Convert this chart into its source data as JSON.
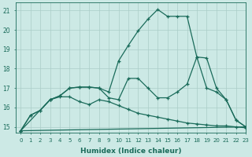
{
  "xlabel": "Humidex (Indice chaleur)",
  "xlim": [
    -0.5,
    23
  ],
  "ylim": [
    14.7,
    21.4
  ],
  "yticks": [
    15,
    16,
    17,
    18,
    19,
    20,
    21
  ],
  "xticks": [
    0,
    1,
    2,
    3,
    4,
    5,
    6,
    7,
    8,
    9,
    10,
    11,
    12,
    13,
    14,
    15,
    16,
    17,
    18,
    19,
    20,
    21,
    22,
    23
  ],
  "background_color": "#cce9e5",
  "grid_color": "#aacdc8",
  "line_color": "#1a6b5a",
  "lines": [
    {
      "x": [
        0,
        1,
        2,
        3,
        4,
        5,
        6,
        7,
        8,
        9,
        10,
        11,
        12,
        13,
        14,
        15,
        16,
        17,
        18,
        19,
        20,
        21,
        22,
        23
      ],
      "y": [
        14.8,
        15.6,
        15.85,
        16.4,
        16.6,
        17.0,
        17.05,
        17.05,
        17.0,
        16.8,
        18.4,
        19.2,
        19.95,
        20.55,
        21.05,
        20.7,
        20.7,
        20.7,
        18.6,
        18.55,
        17.0,
        16.4,
        15.35,
        15.0
      ]
    },
    {
      "x": [
        0,
        1,
        2,
        3,
        4,
        5,
        6,
        7,
        8,
        9,
        10,
        11,
        12,
        13,
        14,
        15,
        16,
        17,
        18,
        19,
        20,
        21,
        22,
        23
      ],
      "y": [
        14.8,
        15.6,
        15.85,
        16.4,
        16.6,
        17.0,
        17.05,
        17.05,
        17.0,
        16.5,
        16.4,
        17.5,
        17.5,
        17.0,
        16.5,
        16.5,
        16.8,
        17.2,
        18.6,
        17.0,
        16.8,
        16.4,
        15.35,
        15.0
      ]
    },
    {
      "x": [
        0,
        23
      ],
      "y": [
        14.8,
        15.0
      ]
    },
    {
      "x": [
        0,
        3,
        4,
        5,
        6,
        7,
        8,
        9,
        10,
        11,
        12,
        13,
        14,
        15,
        16,
        17,
        18,
        19,
        20,
        21,
        22,
        23
      ],
      "y": [
        14.8,
        16.4,
        16.55,
        16.55,
        16.3,
        16.15,
        16.4,
        16.3,
        16.1,
        15.9,
        15.7,
        15.6,
        15.5,
        15.4,
        15.3,
        15.2,
        15.15,
        15.1,
        15.05,
        15.05,
        15.0,
        14.95
      ]
    }
  ]
}
